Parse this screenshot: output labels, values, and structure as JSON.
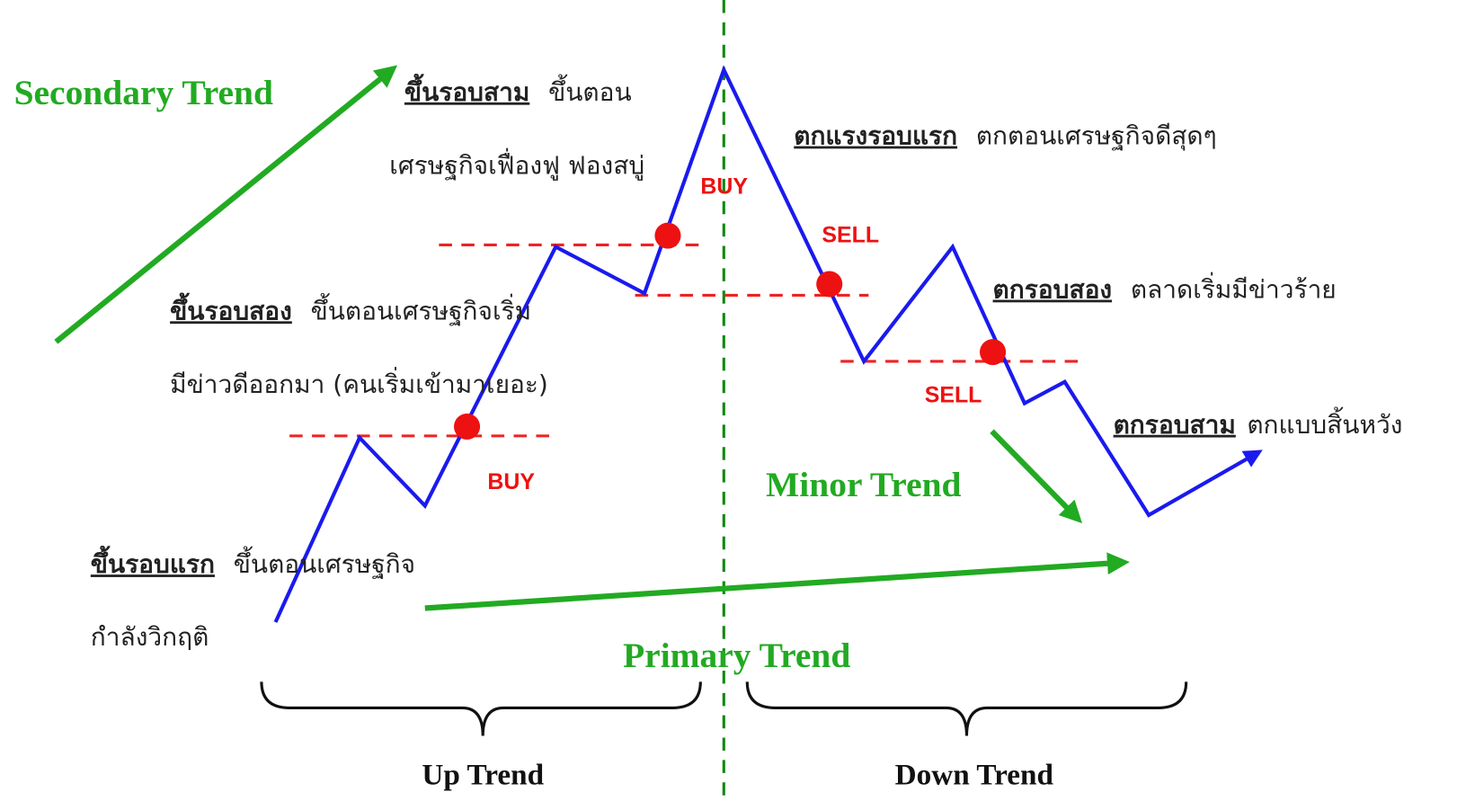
{
  "trends": {
    "secondary": "Secondary Trend",
    "minor": "Minor Trend",
    "primary": "Primary Trend"
  },
  "phases": {
    "up": "Up Trend",
    "down": "Down Trend"
  },
  "stages": [
    {
      "title": "ขึ้นรอบแรก",
      "text": [
        "ขึ้นตอนเศรษฐกิจ",
        "กำลังวิกฤติ"
      ]
    },
    {
      "title": "ขึ้นรอบสอง",
      "text": [
        "ขึ้นตอนเศรษฐกิจเริ่ม",
        "มีข่าวดีออกมา (คนเริ่มเข้ามาเยอะ)"
      ]
    },
    {
      "title": "ขึ้นรอบสาม",
      "text": [
        "ขึ้นตอน",
        "เศรษฐกิจเฟื่องฟู ฟองสบู่"
      ]
    },
    {
      "title": "ตกแรงรอบแรก",
      "text": [
        "ตกตอนเศรษฐกิจดีสุดๆ"
      ]
    },
    {
      "title": "ตกรอบสอง",
      "text": [
        "ตลาดเริ่มมีข่าวร้าย"
      ]
    },
    {
      "title": "ตกรอบสาม",
      "text": [
        "ตกแบบสิ้นหวัง"
      ]
    }
  ],
  "signals": [
    "BUY",
    "BUY",
    "SELL",
    "SELL"
  ]
}
